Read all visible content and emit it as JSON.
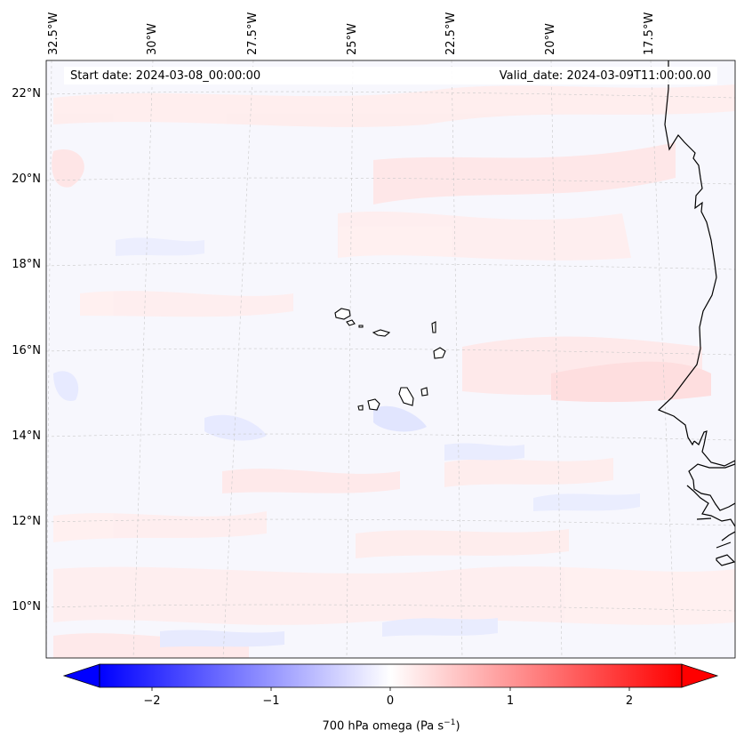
{
  "map": {
    "start_date": "Start date: 2024-03-08_00:00:00",
    "valid_date": "Valid_date: 2024-03-09T11:00:00.00",
    "lon_labels": [
      "32.5°W",
      "30°W",
      "27.5°W",
      "25°W",
      "22.5°W",
      "20°W",
      "17.5°W"
    ],
    "lat_labels": [
      "22°N",
      "20°N",
      "18°N",
      "16°N",
      "14°N",
      "12°N",
      "10°N"
    ],
    "field": "700 hPa omega",
    "features": [
      "cape-verde-islands",
      "west-africa-coastline"
    ]
  },
  "colorbar": {
    "label_prefix": "700 hPa omega (Pa s",
    "label_exp": "−1",
    "label_suffix": ")",
    "ticks": [
      "−2",
      "−1",
      "0",
      "1",
      "2"
    ],
    "min": -2.6,
    "max": 2.6,
    "low_color": "#0000ff",
    "mid_color": "#ffffff",
    "high_color": "#ff0000"
  }
}
